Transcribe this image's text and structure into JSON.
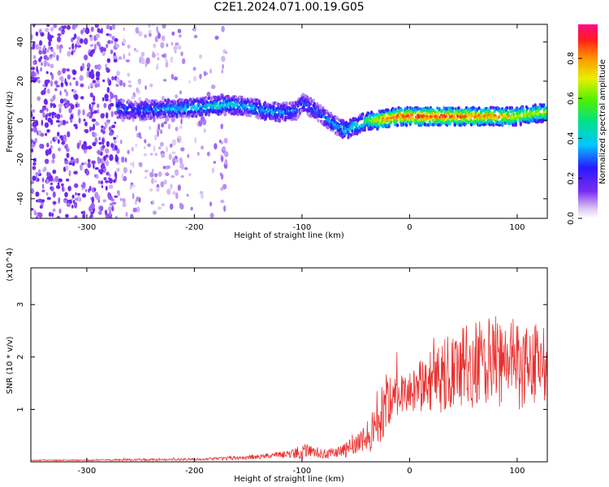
{
  "title": "C2E1.2024.071.00.19.G05",
  "chart_data": [
    {
      "type": "heatmap",
      "xlabel": "Height of straight line (km)",
      "ylabel": "Frequency (Hz)",
      "xlim": [
        -352,
        128
      ],
      "ylim": [
        -50,
        49
      ],
      "xticks": [
        -300,
        -200,
        -100,
        0,
        100
      ],
      "yticks": [
        -40,
        -20,
        0,
        20,
        40
      ],
      "colorbar": {
        "label": "Normalized spectral amplitude",
        "range": [
          0,
          0.97
        ],
        "ticks": [
          "0.0",
          "0.2",
          "0.4",
          "0.6",
          "0.8"
        ],
        "tick_values": [
          0,
          0.2,
          0.4,
          0.6,
          0.8
        ],
        "colormap": "rainbow (violet to red/pink)"
      },
      "ridge": {
        "x": [
          -270,
          -250,
          -230,
          -210,
          -190,
          -170,
          -150,
          -135,
          -120,
          -105,
          -100,
          -90,
          -80,
          -70,
          -60,
          -50,
          -40,
          -30,
          -20,
          -10,
          0,
          20,
          40,
          60,
          80,
          100,
          110,
          128
        ],
        "freq": [
          6,
          5,
          6,
          6,
          7,
          8,
          7,
          5,
          4,
          5,
          9,
          6,
          2,
          -2,
          -5,
          -3,
          0,
          0,
          1,
          2,
          2,
          2,
          2,
          2,
          2,
          2,
          3,
          4
        ],
        "amplitude": [
          0.3,
          0.3,
          0.35,
          0.4,
          0.4,
          0.45,
          0.35,
          0.4,
          0.35,
          0.3,
          0.3,
          0.3,
          0.3,
          0.35,
          0.4,
          0.45,
          0.55,
          0.75,
          0.9,
          0.92,
          0.95,
          0.95,
          0.92,
          0.9,
          0.85,
          0.75,
          0.7,
          0.7
        ]
      },
      "noise_region_km": [
        -352,
        -170
      ]
    },
    {
      "type": "line",
      "xlabel": "Height of straight line (km)",
      "ylabel": "SNR (10 * v/v)",
      "y_multiplier": "(x10^4)",
      "xlim": [
        -352,
        128
      ],
      "ylim": [
        0,
        3.7
      ],
      "xticks": [
        -300,
        -200,
        -100,
        0,
        100
      ],
      "yticks": [
        1,
        2,
        3
      ],
      "color": "#e8302e",
      "series": [
        {
          "x": [
            -350,
            -300,
            -250,
            -200,
            -175,
            -150,
            -125,
            -110,
            -100,
            -90,
            -80,
            -70,
            -60,
            -50,
            -40,
            -30,
            -25,
            -20,
            -15,
            -10,
            0,
            10,
            20,
            30,
            40,
            50,
            60,
            70,
            80,
            90,
            100,
            110,
            120,
            128
          ],
          "y": [
            0.03,
            0.03,
            0.04,
            0.05,
            0.06,
            0.08,
            0.12,
            0.15,
            0.2,
            0.2,
            0.15,
            0.18,
            0.22,
            0.3,
            0.45,
            0.7,
            1.0,
            1.2,
            1.25,
            1.3,
            1.35,
            1.45,
            1.55,
            1.6,
            1.75,
            1.8,
            1.85,
            1.9,
            1.95,
            1.8,
            1.9,
            1.85,
            1.8,
            1.75
          ],
          "spread": [
            0.01,
            0.01,
            0.02,
            0.02,
            0.03,
            0.04,
            0.06,
            0.08,
            0.15,
            0.1,
            0.1,
            0.1,
            0.15,
            0.2,
            0.3,
            0.45,
            0.6,
            0.6,
            0.4,
            0.4,
            0.4,
            0.5,
            0.6,
            0.7,
            0.8,
            0.8,
            0.85,
            0.85,
            0.9,
            0.85,
            0.9,
            0.85,
            0.8,
            0.8
          ]
        }
      ]
    }
  ]
}
